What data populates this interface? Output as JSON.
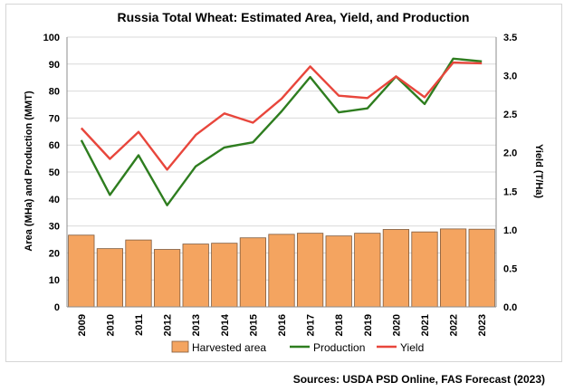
{
  "chart_data": {
    "type": "bar+line",
    "title": "Russia Total Wheat: Estimated Area, Yield, and Production",
    "categories": [
      "2009",
      "2010",
      "2011",
      "2012",
      "2013",
      "2014",
      "2015",
      "2016",
      "2017",
      "2018",
      "2019",
      "2020",
      "2021",
      "2022",
      "2023"
    ],
    "y_left": {
      "label": "Area (MHa) and Production (MMT)",
      "range": [
        0,
        100
      ],
      "ticks": [
        "0",
        "10",
        "20",
        "30",
        "40",
        "50",
        "60",
        "70",
        "80",
        "90",
        "100"
      ]
    },
    "y_right": {
      "label": "Yield (T/Ha)",
      "range": [
        0,
        3.5
      ],
      "ticks": [
        "0.0",
        "0.5",
        "1.0",
        "1.5",
        "2.0",
        "2.5",
        "3.0",
        "3.5"
      ]
    },
    "series": [
      {
        "name": "Harvested area",
        "kind": "bar",
        "axis": "left",
        "color": "#f4a460",
        "values": [
          26.6,
          21.6,
          24.8,
          21.3,
          23.3,
          23.6,
          25.6,
          26.9,
          27.3,
          26.3,
          27.3,
          28.7,
          27.8,
          28.9,
          28.8
        ]
      },
      {
        "name": "Production",
        "kind": "line",
        "axis": "left",
        "color": "#2e7d1f",
        "values": [
          61.8,
          41.5,
          56.2,
          37.7,
          52.1,
          59.1,
          61.0,
          72.5,
          85.2,
          72.1,
          73.6,
          85.4,
          75.2,
          92.0,
          91.0
        ]
      },
      {
        "name": "Yield",
        "kind": "line",
        "axis": "right",
        "color": "#e8463c",
        "values": [
          2.32,
          1.92,
          2.27,
          1.78,
          2.23,
          2.51,
          2.39,
          2.7,
          3.12,
          2.74,
          2.71,
          2.99,
          2.72,
          3.17,
          3.16
        ]
      }
    ],
    "legend": "bottom",
    "source": "Sources: USDA PSD Online, FAS Forecast (2023)"
  }
}
